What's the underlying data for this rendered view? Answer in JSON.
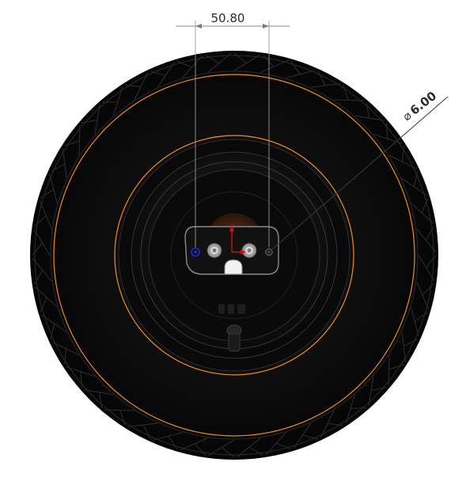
{
  "dimensions": {
    "linear": {
      "value": "50.80"
    },
    "diameter": {
      "symbol": "⌀",
      "value": "6.00"
    }
  },
  "colors": {
    "background": "#ffffff",
    "tire": "#0b0b0b",
    "tire_tread": "#1c1c1c",
    "highlight_edge": "#f28c1e",
    "dimension_line": "#7a7a7a",
    "origin_x": "#d01010",
    "origin_y": "#d01010",
    "sketch_point": "#1a2bd6"
  }
}
